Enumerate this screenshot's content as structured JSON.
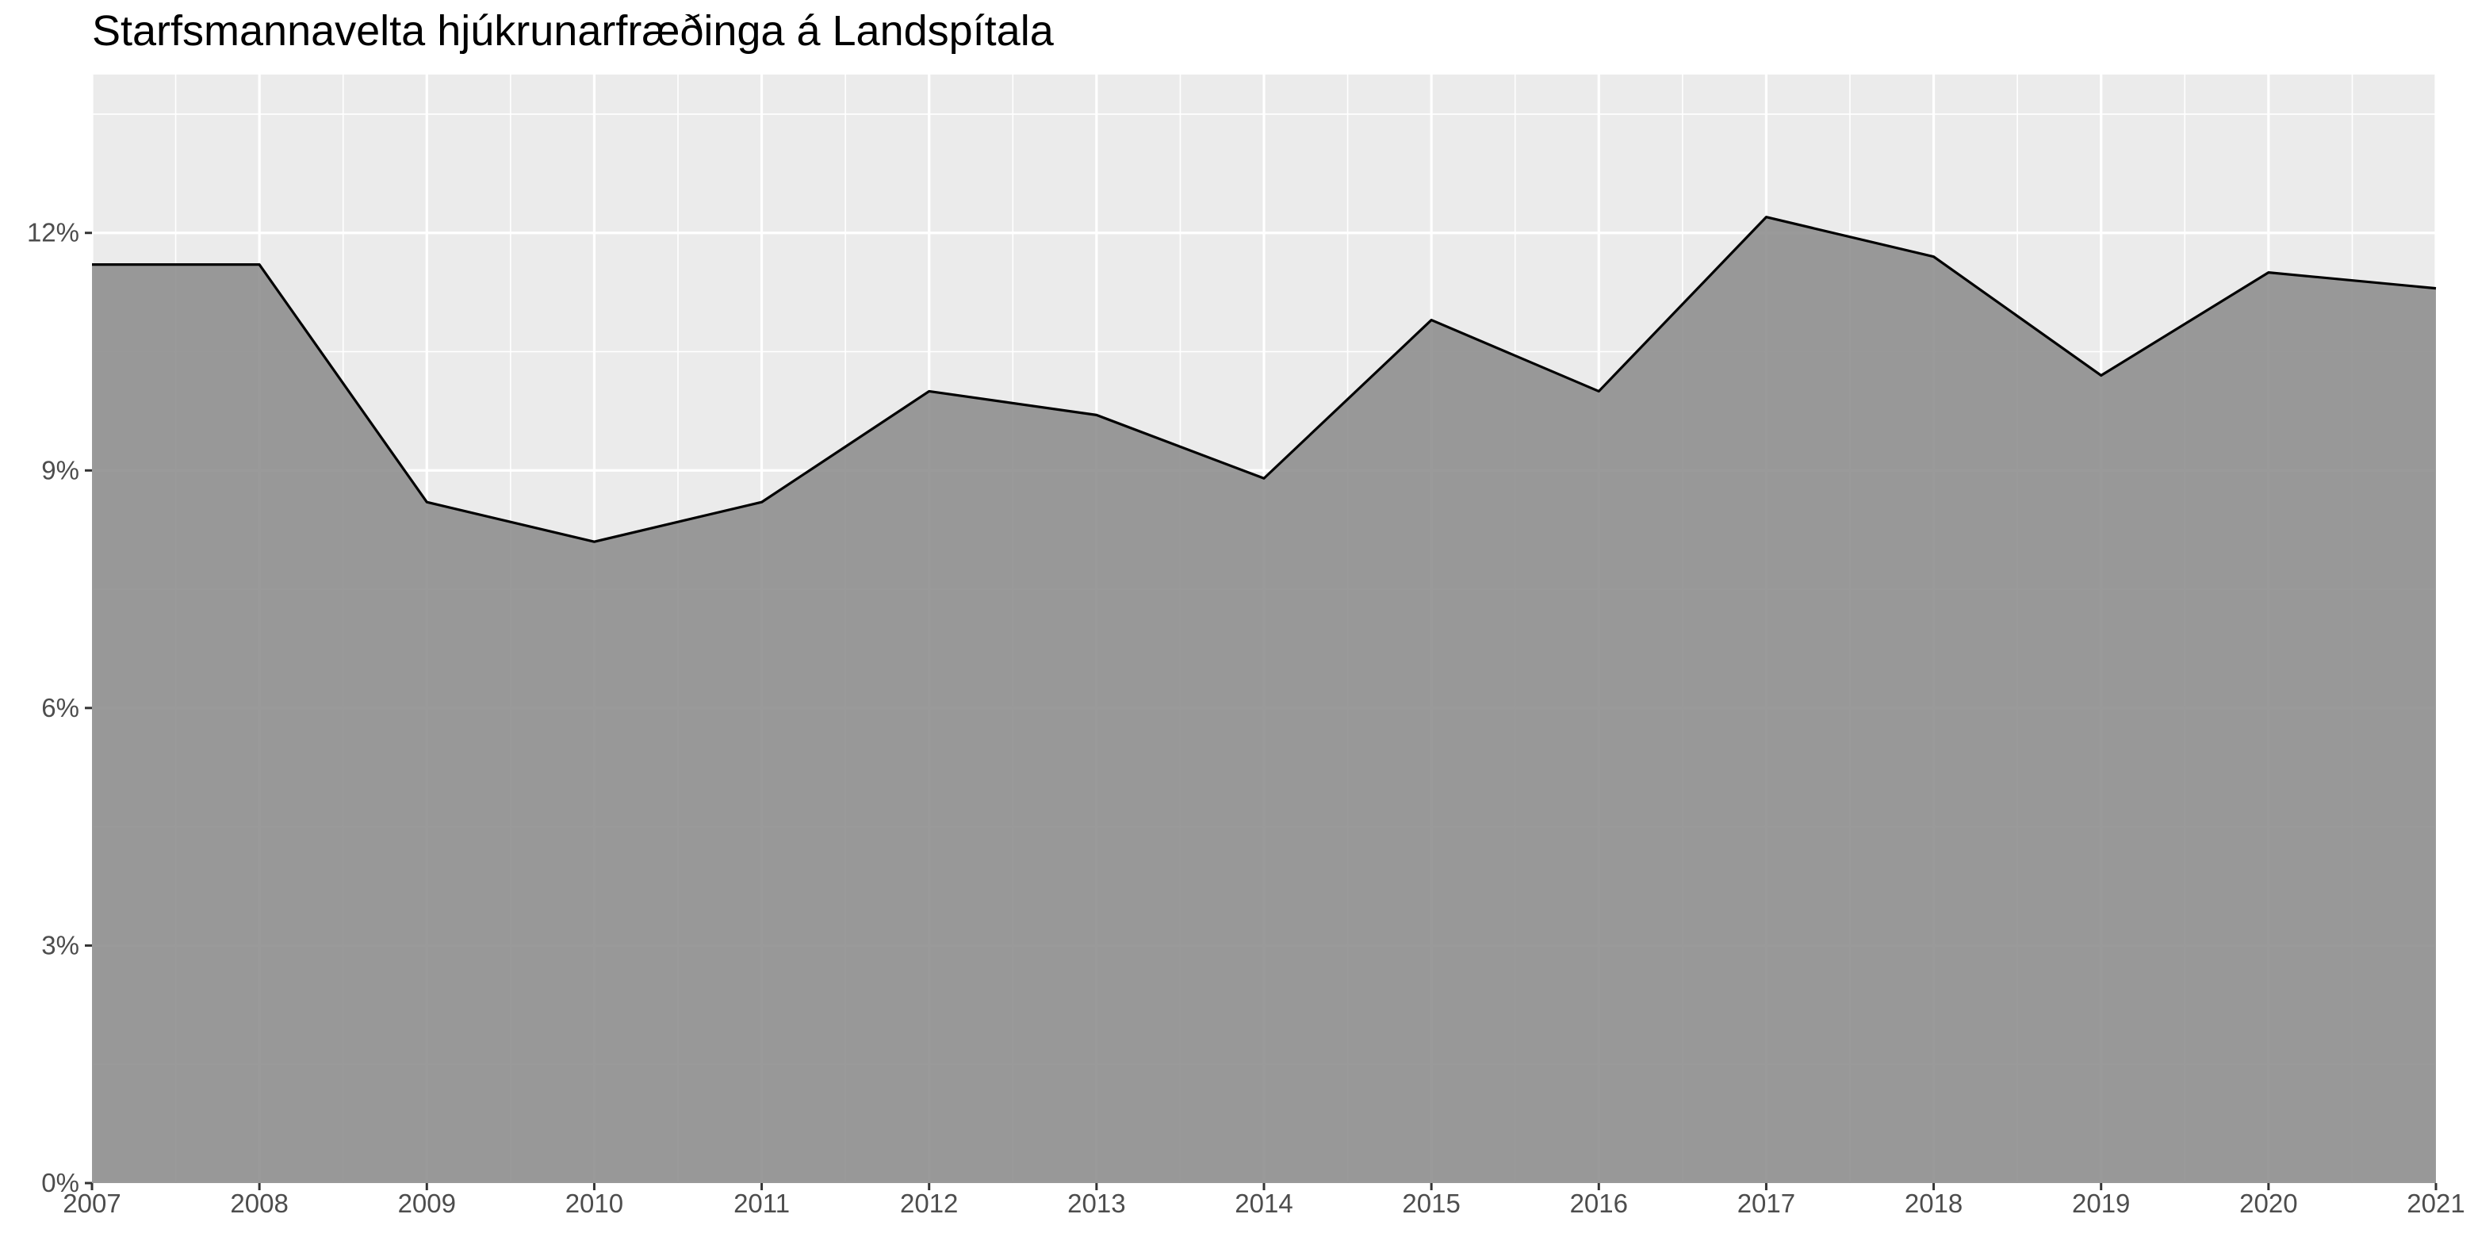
{
  "chart_data": {
    "type": "area",
    "title": "Starfsmannavelta hjúkrunarfræðinga á Landspítala",
    "xlabel": "",
    "ylabel": "",
    "x": [
      2007,
      2008,
      2009,
      2010,
      2011,
      2012,
      2013,
      2014,
      2015,
      2016,
      2017,
      2018,
      2019,
      2020,
      2021
    ],
    "series": [
      {
        "values": [
          11.6,
          11.6,
          8.6,
          8.1,
          8.6,
          10.0,
          9.7,
          8.9,
          10.9,
          10.0,
          12.2,
          11.7,
          10.2,
          11.5,
          11.3
        ]
      }
    ],
    "xlim": [
      2007,
      2021
    ],
    "ylim": [
      0,
      14
    ],
    "x_ticks": [
      "2007",
      "2008",
      "2009",
      "2010",
      "2011",
      "2012",
      "2013",
      "2014",
      "2015",
      "2016",
      "2017",
      "2018",
      "2019",
      "2020",
      "2021"
    ],
    "y_ticks": [
      0,
      3,
      6,
      9,
      12
    ],
    "y_tick_labels": [
      "0%",
      "3%",
      "6%",
      "9%",
      "12%"
    ],
    "grid": true,
    "legend": "none",
    "colors": {
      "panel_background": "#ebebeb",
      "grid": "#ffffff",
      "area_fill": "#8f8f8f",
      "line": "#000000",
      "tick_text": "#4d4d4d"
    }
  }
}
